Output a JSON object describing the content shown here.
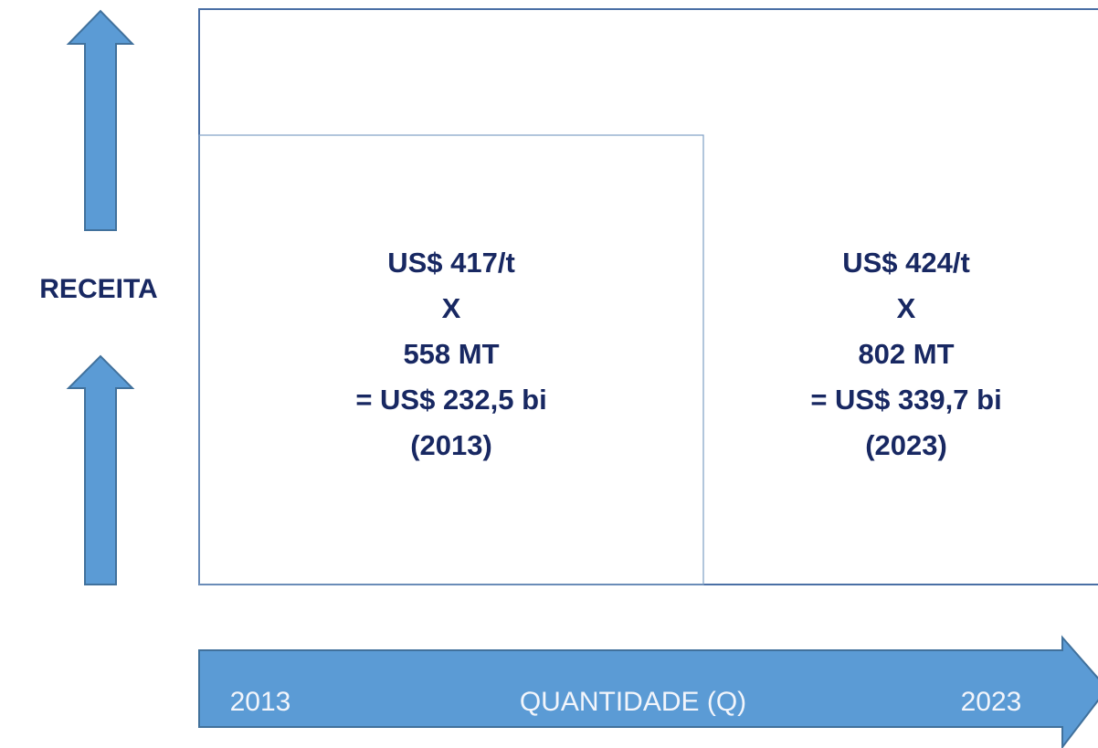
{
  "y_axis": {
    "label": "RECEITA"
  },
  "blocks": [
    {
      "lines": [
        "US$ 417/t",
        "X",
        "558 MT",
        "= US$ 232,5 bi",
        "(2013)"
      ]
    },
    {
      "lines": [
        "US$ 424/t",
        "X",
        "802 MT",
        "= US$ 339,7 bi",
        "(2023)"
      ]
    }
  ],
  "x_axis": {
    "start": "2013",
    "label": "QUANTIDADE (Q)",
    "end": "2023"
  }
}
